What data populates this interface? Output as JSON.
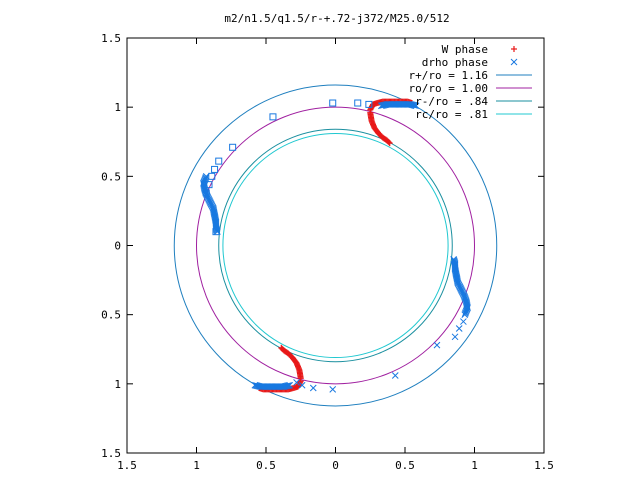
{
  "chart_data": {
    "type": "scatter",
    "title": "m2/n1.5/q1.5/r-+.72-j372/M25.0/512",
    "xlabel": "",
    "ylabel": "",
    "xlim": [
      -1.5,
      1.5
    ],
    "ylim": [
      -1.5,
      1.5
    ],
    "x_ticks": [
      -1.5,
      -1,
      -0.5,
      0,
      0.5,
      1,
      1.5
    ],
    "y_ticks": [
      -1.5,
      -1,
      -0.5,
      0,
      0.5,
      1,
      1.5
    ],
    "x_tick_labels": [
      "1.5",
      "1",
      "0.5",
      "0",
      "0.5",
      "1",
      "1.5"
    ],
    "y_tick_labels": [
      "1.5",
      "1",
      "0.5",
      "0",
      "0.5",
      "1",
      "1.5"
    ],
    "grid": false,
    "legend_position": "top-right",
    "circles": [
      {
        "name": "r+/ro = 1.16",
        "radius": 1.16,
        "color": "#1f7fbf"
      },
      {
        "name": "ro/ro = 1.00",
        "radius": 1.0,
        "color": "#a020a0"
      },
      {
        "name": "r-/ro = .84",
        "radius": 0.84,
        "color": "#1a8f9f"
      },
      {
        "name": "rc/ro = .81",
        "radius": 0.81,
        "color": "#20c8d0"
      }
    ],
    "series": [
      {
        "name": "W phase",
        "marker": "plus",
        "color": "#e81818",
        "arms": [
          {
            "x": [
              0.25,
              0.27,
              0.3,
              0.34,
              0.38,
              0.42,
              0.47,
              0.52,
              0.55
            ],
            "y": [
              0.98,
              1.02,
              1.03,
              1.04,
              1.04,
              1.04,
              1.04,
              1.04,
              1.03
            ]
          },
          {
            "x": [
              0.25,
              0.26,
              0.28,
              0.31,
              0.34,
              0.37,
              0.39
            ],
            "y": [
              0.96,
              0.9,
              0.85,
              0.81,
              0.78,
              0.76,
              0.74
            ]
          },
          {
            "x": [
              -0.25,
              -0.27,
              -0.3,
              -0.34,
              -0.38,
              -0.42,
              -0.47,
              -0.52,
              -0.55
            ],
            "y": [
              -0.98,
              -1.02,
              -1.03,
              -1.04,
              -1.04,
              -1.04,
              -1.04,
              -1.04,
              -1.03
            ]
          },
          {
            "x": [
              -0.25,
              -0.26,
              -0.28,
              -0.31,
              -0.34,
              -0.37,
              -0.39
            ],
            "y": [
              -0.96,
              -0.9,
              -0.85,
              -0.81,
              -0.78,
              -0.76,
              -0.74
            ]
          }
        ]
      },
      {
        "name": "drho phase",
        "marker": "cross",
        "color": "#1878e0",
        "arms": [
          {
            "x": [
              0.33,
              0.37,
              0.41,
              0.45,
              0.5,
              0.54,
              0.58
            ],
            "y": [
              1.01,
              1.02,
              1.02,
              1.02,
              1.02,
              1.02,
              1.01
            ]
          },
          {
            "x": [
              -0.33,
              -0.37,
              -0.41,
              -0.45,
              -0.5,
              -0.54,
              -0.58
            ],
            "y": [
              -1.01,
              -1.02,
              -1.02,
              -1.02,
              -1.02,
              -1.02,
              -1.01
            ]
          },
          {
            "x": [
              -0.93,
              -0.95,
              -0.94,
              -0.92,
              -0.9,
              -0.88,
              -0.87,
              -0.86,
              -0.86,
              -0.85
            ],
            "y": [
              0.5,
              0.45,
              0.4,
              0.35,
              0.31,
              0.27,
              0.22,
              0.17,
              0.13,
              0.1
            ]
          },
          {
            "x": [
              0.93,
              0.95,
              0.94,
              0.92,
              0.9,
              0.88,
              0.87,
              0.86,
              0.86,
              0.85
            ],
            "y": [
              -0.5,
              -0.45,
              -0.4,
              -0.35,
              -0.31,
              -0.27,
              -0.22,
              -0.17,
              -0.13,
              -0.1
            ]
          },
          {
            "x": [
              0.92,
              0.89,
              0.86,
              0.73,
              0.43
            ],
            "y": [
              -0.55,
              -0.6,
              -0.66,
              -0.72,
              -0.94
            ],
            "scattered": true
          },
          {
            "x": [
              -0.02,
              -0.16,
              -0.24,
              -0.28
            ],
            "y": [
              -1.04,
              -1.03,
              -1.01,
              -0.99
            ],
            "scattered": true
          }
        ],
        "squares": {
          "x": [
            -0.45,
            -0.74,
            -0.84,
            -0.87,
            -0.89,
            -0.91,
            -0.93,
            -0.86,
            0.16,
            0.24,
            -0.02
          ],
          "y": [
            0.93,
            0.71,
            0.61,
            0.55,
            0.5,
            0.44,
            0.38,
            0.1,
            1.03,
            1.02,
            1.03
          ]
        }
      }
    ]
  }
}
